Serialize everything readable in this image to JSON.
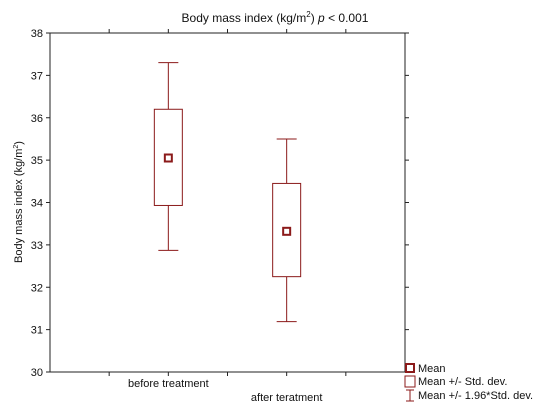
{
  "chart_data": {
    "type": "boxplot",
    "title_main": "Body mass index (kg/m",
    "title_sup": "2",
    "title_close": ")",
    "title_p": "p",
    "title_value": " < 0.001",
    "ylabel_main": "Body mass index (kg/m",
    "ylabel_sup": "2",
    "ylabel_close": ")",
    "xlabel": "",
    "ylim": [
      30,
      38
    ],
    "yticks": [
      "30",
      "31",
      "32",
      "33",
      "34",
      "35",
      "36",
      "37",
      "38"
    ],
    "grid": false,
    "legend_position": "bottom-right",
    "color": "#8b1a1a",
    "categories": [
      "before treatment",
      "after teratment"
    ],
    "series": [
      {
        "category": "before treatment",
        "mean": 35.05,
        "sd_low": 33.93,
        "sd_high": 36.2,
        "ci_low": 32.87,
        "ci_high": 37.3
      },
      {
        "category": "after teratment",
        "mean": 33.32,
        "sd_low": 32.25,
        "sd_high": 34.45,
        "ci_low": 31.19,
        "ci_high": 35.5
      }
    ],
    "legend": [
      "Mean",
      "Mean +/- Std. dev.",
      "Mean +/- 1.96*Std. dev."
    ]
  }
}
